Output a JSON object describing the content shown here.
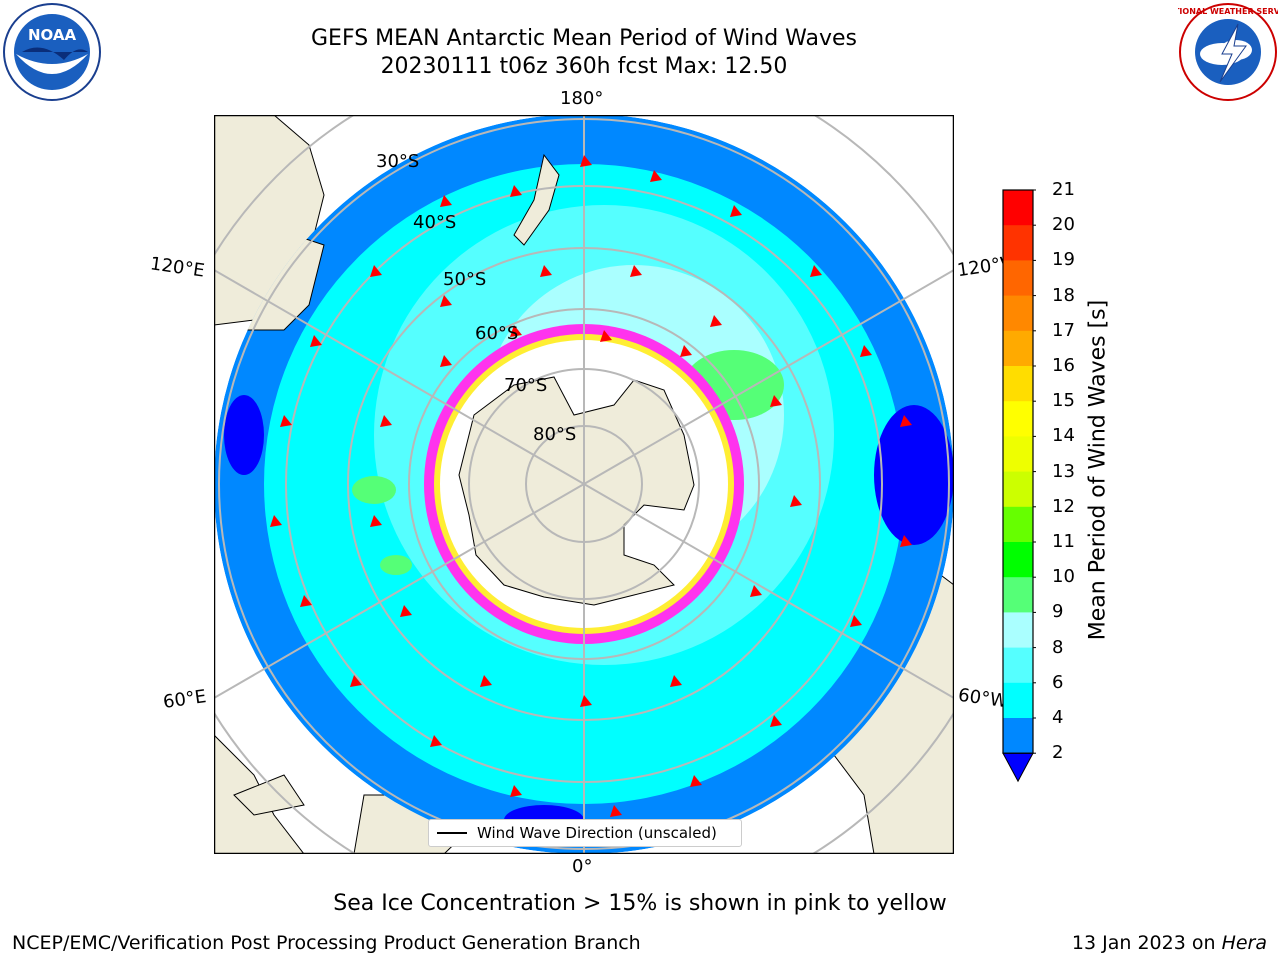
{
  "title": {
    "line1": "GEFS MEAN Antarctic Mean Period of Wind Waves",
    "line2": "20230111 t06z 360h fcst   Max: 12.50"
  },
  "map": {
    "projection": "south-polar-stereographic",
    "longitude_labels": {
      "top": "180°",
      "bottom": "0°",
      "left_upper": "120°E",
      "left_lower": "60°E",
      "right_upper": "120°W",
      "right_lower": "60°W"
    },
    "latitude_labels": [
      "30°S",
      "40°S",
      "50°S",
      "60°S",
      "70°S",
      "80°S"
    ],
    "legend": "Wind Wave Direction (unscaled)",
    "colors": {
      "land": "#efecda",
      "ice_pink": "#ff33ee",
      "ice_yellow": "#ffee33",
      "arrow": "#ff0000",
      "grid": "#b8b8b8"
    }
  },
  "colorbar": {
    "label": "Mean Period of Wind Waves [s]",
    "ticks": [
      "21",
      "20",
      "19",
      "18",
      "17",
      "16",
      "15",
      "14",
      "13",
      "12",
      "11",
      "10",
      "9",
      "8",
      "6",
      "4",
      "2"
    ],
    "colors": [
      "#ff0000",
      "#ff3300",
      "#ff6600",
      "#ff8800",
      "#ffaa00",
      "#ffdd00",
      "#ffff00",
      "#eeff00",
      "#ccff00",
      "#66ff00",
      "#00ff00",
      "#55ff77",
      "#aaffff",
      "#55ffff",
      "#00ffff",
      "#0088ff",
      "#0000ff"
    ]
  },
  "logos": {
    "left": "NOAA",
    "right": "NATIONAL WEATHER SERVICE"
  },
  "subnote": "Sea Ice Concentration > 15% is shown in pink to yellow",
  "footer": {
    "left": "NCEP/EMC/Verification Post Processing Product Generation Branch",
    "right_date": "13 Jan 2023 on ",
    "right_host": "Hera"
  }
}
